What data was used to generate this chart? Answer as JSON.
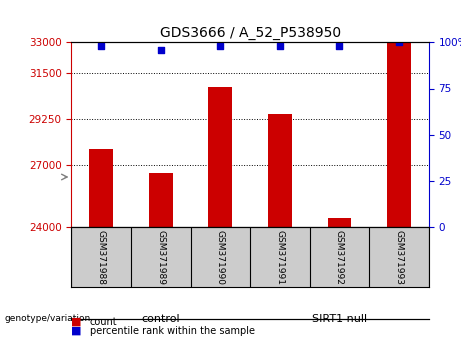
{
  "title": "GDS3666 / A_52_P538950",
  "samples": [
    "GSM371988",
    "GSM371989",
    "GSM371990",
    "GSM371991",
    "GSM371992",
    "GSM371993"
  ],
  "counts": [
    27800,
    26600,
    30800,
    29500,
    24400,
    33000
  ],
  "percentiles": [
    98,
    96,
    98,
    98,
    98,
    100
  ],
  "ylim_left": [
    24000,
    33000
  ],
  "ylim_right": [
    0,
    100
  ],
  "yticks_left": [
    24000,
    27000,
    29250,
    31500,
    33000
  ],
  "yticks_right": [
    0,
    25,
    50,
    75,
    100
  ],
  "bar_color": "#cc0000",
  "dot_color": "#0000cc",
  "groups": [
    {
      "label": "control",
      "indices": [
        0,
        1,
        2
      ],
      "color": "#aaeebb"
    },
    {
      "label": "SIRT1 null",
      "indices": [
        3,
        4,
        5
      ],
      "color": "#66dd77"
    }
  ],
  "bar_width": 0.4,
  "label_bg_color": "#cccccc",
  "legend_count_color": "#cc0000",
  "legend_percentile_color": "#0000cc",
  "left_tick_color": "#cc0000",
  "right_tick_color": "#0000cc"
}
